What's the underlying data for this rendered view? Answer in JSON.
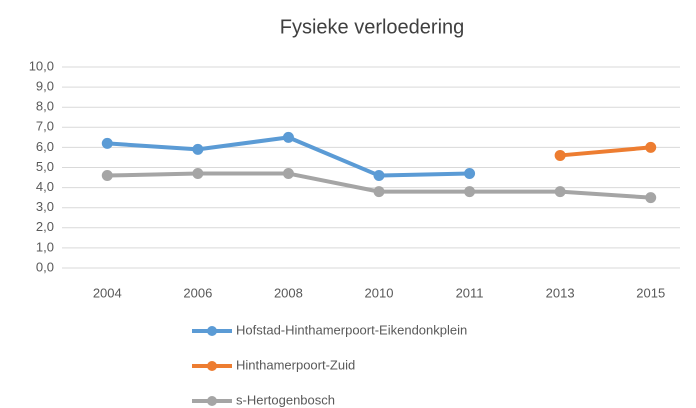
{
  "chart_data": {
    "type": "line",
    "title": "Fysieke verloedering",
    "categories": [
      "2004",
      "2006",
      "2008",
      "2010",
      "2011",
      "2013",
      "2015"
    ],
    "series": [
      {
        "name": "Hofstad-Hinthamerpoort-Eikendonkplein",
        "color": "#5b9bd5",
        "values": [
          6.2,
          5.9,
          6.5,
          4.6,
          4.7,
          null,
          null
        ]
      },
      {
        "name": "Hinthamerpoort-Zuid",
        "color": "#ed7d31",
        "values": [
          null,
          null,
          null,
          null,
          null,
          5.6,
          6.0
        ]
      },
      {
        "name": "s-Hertogenbosch",
        "color": "#a5a5a5",
        "values": [
          4.6,
          4.7,
          4.7,
          3.8,
          3.8,
          3.8,
          3.5
        ]
      }
    ],
    "ylim": [
      0,
      10
    ],
    "yticks": [
      {
        "value": 0,
        "label": "0,0"
      },
      {
        "value": 1,
        "label": "1,0"
      },
      {
        "value": 2,
        "label": "2,0"
      },
      {
        "value": 3,
        "label": "3,0"
      },
      {
        "value": 4,
        "label": "4,0"
      },
      {
        "value": 5,
        "label": "5,0"
      },
      {
        "value": 6,
        "label": "6,0"
      },
      {
        "value": 7,
        "label": "7,0"
      },
      {
        "value": 8,
        "label": "8,0"
      },
      {
        "value": 9,
        "label": "9,0"
      },
      {
        "value": 10,
        "label": "10,0"
      }
    ],
    "grid": true,
    "legend": "bottom"
  }
}
